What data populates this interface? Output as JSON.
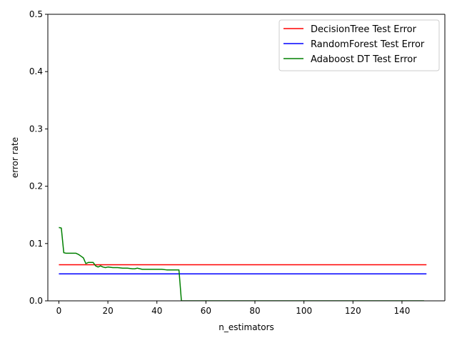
{
  "chart_data": {
    "type": "line",
    "xlabel": "n_estimators",
    "ylabel": "error rate",
    "xlim": [
      -4.5,
      157.5
    ],
    "ylim": [
      0,
      0.5
    ],
    "x_ticks": [
      0,
      20,
      40,
      60,
      80,
      100,
      120,
      140
    ],
    "y_ticks": [
      0.0,
      0.1,
      0.2,
      0.3,
      0.4,
      0.5
    ],
    "y_tick_labels": [
      "0.0",
      "0.1",
      "0.2",
      "0.3",
      "0.4",
      "0.5"
    ],
    "grid": false,
    "legend_position": "top-right",
    "series": [
      {
        "name": "DecisionTree Test Error",
        "color": "#ff0000",
        "x": [
          0,
          150
        ],
        "y": [
          0.063,
          0.063
        ]
      },
      {
        "name": "RandomForest Test Error",
        "color": "#0000ff",
        "x": [
          0,
          150
        ],
        "y": [
          0.047,
          0.047
        ]
      },
      {
        "name": "Adaboost DT Test Error",
        "color": "#008000",
        "x": [
          0,
          1,
          2,
          3,
          4,
          5,
          6,
          7,
          8,
          9,
          10,
          11,
          12,
          13,
          14,
          15,
          16,
          17,
          18,
          19,
          20,
          22,
          24,
          26,
          28,
          30,
          31,
          32,
          34,
          36,
          38,
          40,
          42,
          44,
          46,
          48,
          49,
          50,
          51,
          60,
          80,
          100,
          120,
          140,
          149
        ],
        "y": [
          0.128,
          0.127,
          0.084,
          0.083,
          0.083,
          0.083,
          0.083,
          0.083,
          0.081,
          0.078,
          0.075,
          0.065,
          0.067,
          0.067,
          0.067,
          0.061,
          0.059,
          0.061,
          0.059,
          0.058,
          0.059,
          0.058,
          0.058,
          0.057,
          0.057,
          0.056,
          0.056,
          0.057,
          0.055,
          0.055,
          0.055,
          0.055,
          0.055,
          0.054,
          0.054,
          0.054,
          0.054,
          0.0,
          0.0,
          0.0,
          0.0,
          0.0,
          0.0,
          0.0,
          0.0
        ]
      }
    ]
  }
}
